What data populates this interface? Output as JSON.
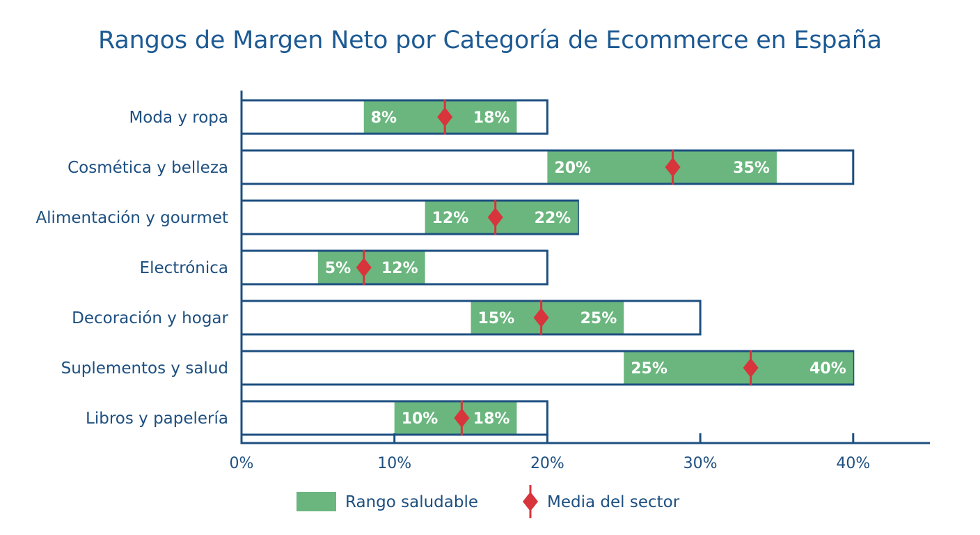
{
  "chart_data": {
    "type": "bar",
    "title": "Rangos de Margen Neto por Categoría de Ecommerce en España",
    "xlabel": "",
    "ylabel": "",
    "xlim": [
      0,
      45
    ],
    "x_ticks": [
      0,
      10,
      20,
      30,
      40
    ],
    "x_tick_labels": [
      "0%",
      "10%",
      "20%",
      "30%",
      "40%"
    ],
    "grid": false,
    "legend_position": "bottom",
    "colors": {
      "range": "#6ab67e",
      "mean": "#d8343b",
      "axis": "#1d4f80",
      "outline": "#1d4f80",
      "title": "#1d5a93"
    },
    "categories": [
      "Moda y ropa",
      "Cosmética y belleza",
      "Alimentación y gourmet",
      "Electrónica",
      "Decoración y hogar",
      "Suplementos y salud",
      "Libros y papelería"
    ],
    "series": [
      {
        "name": "Rango saludable",
        "low": [
          8,
          20,
          12,
          5,
          15,
          25,
          10
        ],
        "high": [
          18,
          35,
          22,
          12,
          25,
          40,
          18
        ],
        "low_labels": [
          "8%",
          "20%",
          "12%",
          "5%",
          "15%",
          "25%",
          "10%"
        ],
        "high_labels": [
          "18%",
          "35%",
          "22%",
          "12%",
          "25%",
          "40%",
          "18%"
        ]
      },
      {
        "name": "Media del sector",
        "values": [
          13.3,
          28.2,
          16.6,
          8,
          19.6,
          33.3,
          14.4
        ]
      }
    ],
    "outline_max": [
      20,
      40,
      22,
      20,
      30,
      40,
      20
    ]
  },
  "legend": {
    "range_label": "Rango saludable",
    "mean_label": "Media del sector"
  }
}
